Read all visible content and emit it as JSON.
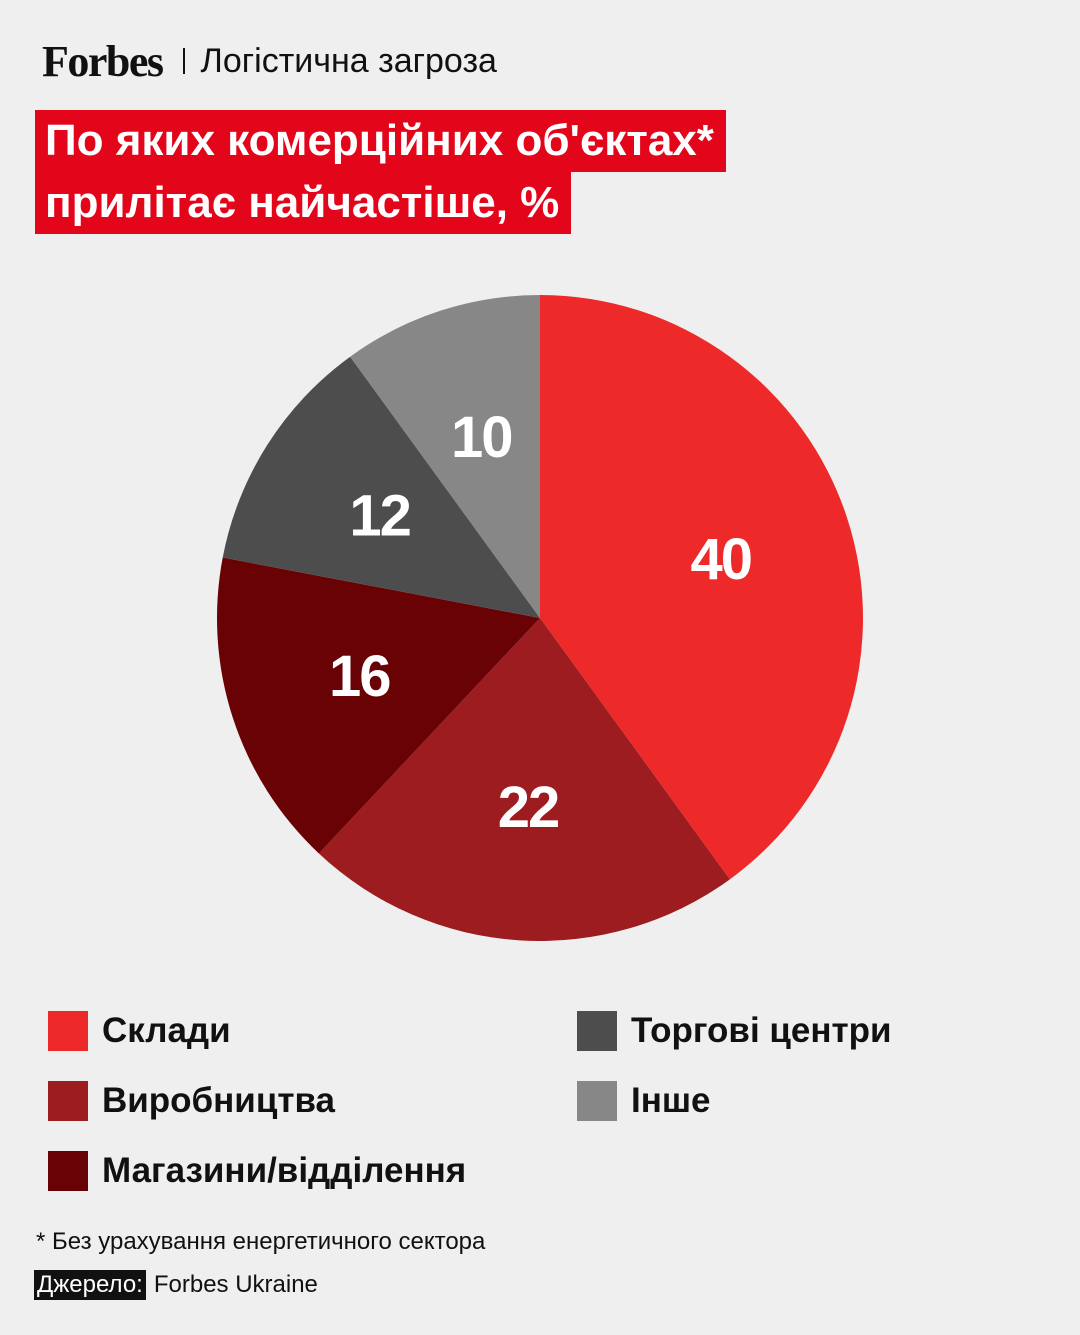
{
  "header": {
    "brand": "Forbes",
    "section": "Логістична загроза"
  },
  "title": {
    "line1": "По яких комерційних об'єктах*",
    "line2": "прилітає найчастіше, %"
  },
  "chart_data": {
    "type": "pie",
    "unit": "%",
    "slices": [
      {
        "label": "Склади",
        "value": 40,
        "color": "#ed2a29"
      },
      {
        "label": "Виробництва",
        "value": 22,
        "color": "#9c1c20"
      },
      {
        "label": "Магазини/відділення",
        "value": 16,
        "color": "#680204"
      },
      {
        "label": "Торгові центри",
        "value": 12,
        "color": "#4d4d4d"
      },
      {
        "label": "Інше",
        "value": 10,
        "color": "#878787"
      }
    ],
    "legend_position": "bottom"
  },
  "legend": {
    "items": [
      {
        "label": "Склади",
        "color": "#ed2a29"
      },
      {
        "label": "Виробництва",
        "color": "#9c1c20"
      },
      {
        "label": "Магазини/відділення",
        "color": "#680204"
      },
      {
        "label": "Торгові центри",
        "color": "#4d4d4d"
      },
      {
        "label": "Інше",
        "color": "#878787"
      }
    ]
  },
  "footnote": "* Без урахування енергетичного сектора",
  "source": {
    "label": "Джерело:",
    "value": "Forbes Ukraine"
  }
}
